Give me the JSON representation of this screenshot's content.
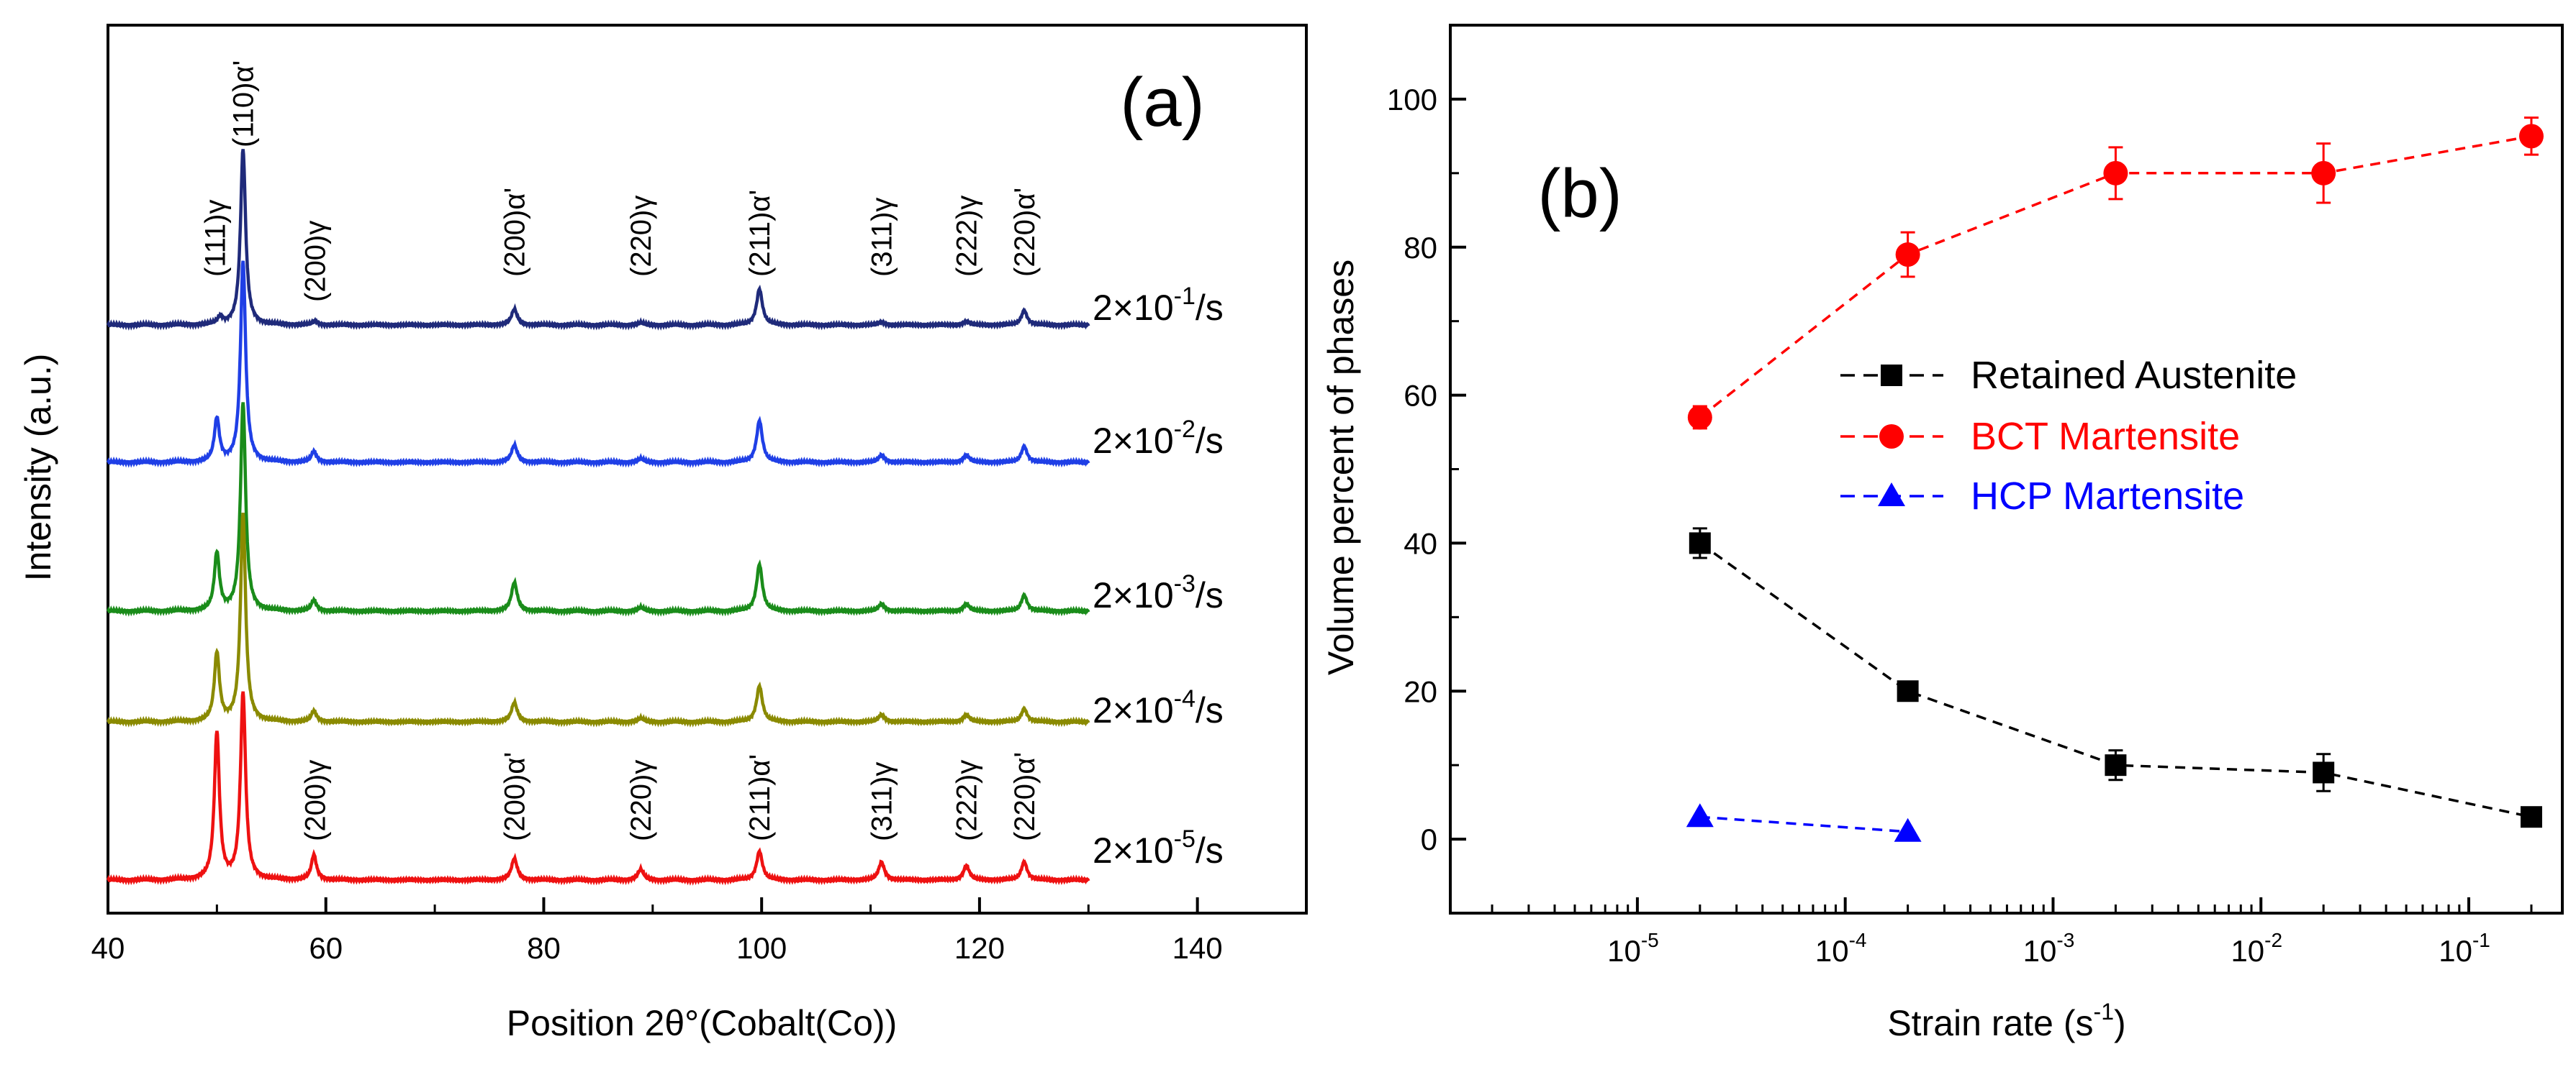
{
  "chart_data": [
    {
      "type": "line",
      "panel": "(a)",
      "title": "",
      "xlabel": "Position 2θ°(Cobalt(Co))",
      "ylabel": "Intensity (a.u.)",
      "xlim": [
        40,
        150
      ],
      "x_ticks": [
        40,
        60,
        80,
        100,
        120,
        140
      ],
      "series": [
        {
          "name": "2×10⁻¹/s",
          "base": "2×10",
          "exp": "-1",
          "unit": "/s",
          "color": "#1f2a7a",
          "peaks": [
            [
              50.3,
              10
            ],
            [
              52.4,
              245
            ],
            [
              59.0,
              5
            ],
            [
              77.3,
              22
            ],
            [
              88.9,
              3
            ],
            [
              99.8,
              50
            ],
            [
              111.0,
              4
            ],
            [
              118.8,
              5
            ],
            [
              124.1,
              20
            ]
          ]
        },
        {
          "name": "2×10⁻²/s",
          "base": "2×10",
          "exp": "-2",
          "unit": "/s",
          "color": "#1f3fe6",
          "peaks": [
            [
              50.0,
              60
            ],
            [
              52.4,
              280
            ],
            [
              58.9,
              15
            ],
            [
              77.3,
              24
            ],
            [
              88.9,
              5
            ],
            [
              99.8,
              58
            ],
            [
              111.0,
              10
            ],
            [
              118.8,
              10
            ],
            [
              124.1,
              22
            ]
          ]
        },
        {
          "name": "2×10⁻³/s",
          "base": "2×10",
          "exp": "-3",
          "unit": "/s",
          "color": "#1a8c1a",
          "peaks": [
            [
              50.0,
              80
            ],
            [
              52.4,
              290
            ],
            [
              58.9,
              15
            ],
            [
              77.3,
              40
            ],
            [
              88.9,
              5
            ],
            [
              99.8,
              65
            ],
            [
              111.0,
              10
            ],
            [
              118.8,
              10
            ],
            [
              124.1,
              22
            ]
          ]
        },
        {
          "name": "2×10⁻⁴/s",
          "base": "2×10",
          "exp": "-4",
          "unit": "/s",
          "color": "#8a8a00",
          "peaks": [
            [
              50.0,
              95
            ],
            [
              52.4,
              290
            ],
            [
              58.9,
              15
            ],
            [
              77.3,
              27
            ],
            [
              88.9,
              5
            ],
            [
              99.8,
              50
            ],
            [
              111.0,
              10
            ],
            [
              118.8,
              10
            ],
            [
              124.1,
              18
            ]
          ]
        },
        {
          "name": "2×10⁻⁵/s",
          "base": "2×10",
          "exp": "-5",
          "unit": "/s",
          "color": "#ee1111",
          "peaks": [
            [
              50.0,
              205
            ],
            [
              52.4,
              260
            ],
            [
              58.9,
              35
            ],
            [
              77.3,
              30
            ],
            [
              88.9,
              15
            ],
            [
              99.8,
              40
            ],
            [
              111.0,
              25
            ],
            [
              118.8,
              20
            ],
            [
              124.1,
              25
            ]
          ]
        }
      ],
      "annotations_top": [
        {
          "label": "(111)γ",
          "x": 49.8
        },
        {
          "label": "(110)α'",
          "x": 52.4
        },
        {
          "label": "(200)γ",
          "x": 59.0
        },
        {
          "label": "(200)α'",
          "x": 77.3
        },
        {
          "label": "(220)γ",
          "x": 88.9
        },
        {
          "label": "(211)α'",
          "x": 99.8
        },
        {
          "label": "(311)γ",
          "x": 111.0
        },
        {
          "label": "(222)γ",
          "x": 118.8
        },
        {
          "label": "(220)α'",
          "x": 124.1
        }
      ],
      "annotations_bottom": [
        {
          "label": "(200)γ",
          "x": 59.0
        },
        {
          "label": "(200)α'",
          "x": 77.3
        },
        {
          "label": "(220)γ",
          "x": 88.9
        },
        {
          "label": "(211)α'",
          "x": 99.8
        },
        {
          "label": "(311)γ",
          "x": 111.0
        },
        {
          "label": "(222)γ",
          "x": 118.8
        },
        {
          "label": "(220)α'",
          "x": 124.1
        }
      ]
    },
    {
      "type": "scatter",
      "panel": "(b)",
      "title": "",
      "xlabel": "Strain rate (s",
      "xlabel_exp": "-1",
      "xlabel_end": ")",
      "ylabel": "Volume percent of phases",
      "xscale": "log",
      "xlim_exp": [
        -5.9,
        -0.55
      ],
      "ylim": [
        -10,
        110
      ],
      "y_ticks": [
        0,
        20,
        40,
        60,
        80,
        100
      ],
      "x_ticks_exp": [
        -5,
        -4,
        -3,
        -2,
        -1
      ],
      "x_tick_base": "10",
      "legend_position": "center-right",
      "series": [
        {
          "name": "Retained Austenite",
          "color": "#000000",
          "marker": "square",
          "x": [
            2e-05,
            0.0002,
            0.002,
            0.02,
            0.2
          ],
          "y": [
            40,
            20,
            10,
            9,
            3
          ],
          "err": [
            2,
            1,
            2,
            2.5,
            1
          ]
        },
        {
          "name": "BCT Martensite",
          "color": "#ff0000",
          "marker": "circle",
          "x": [
            2e-05,
            0.0002,
            0.002,
            0.02,
            0.2
          ],
          "y": [
            57,
            79,
            90,
            90,
            95
          ],
          "err": [
            1.5,
            3,
            3.5,
            4,
            2.5
          ]
        },
        {
          "name": "HCP Martensite",
          "color": "#0000ff",
          "marker": "triangle",
          "x": [
            2e-05,
            0.0002
          ],
          "y": [
            3,
            1
          ],
          "err": [
            0,
            0
          ]
        }
      ]
    }
  ]
}
